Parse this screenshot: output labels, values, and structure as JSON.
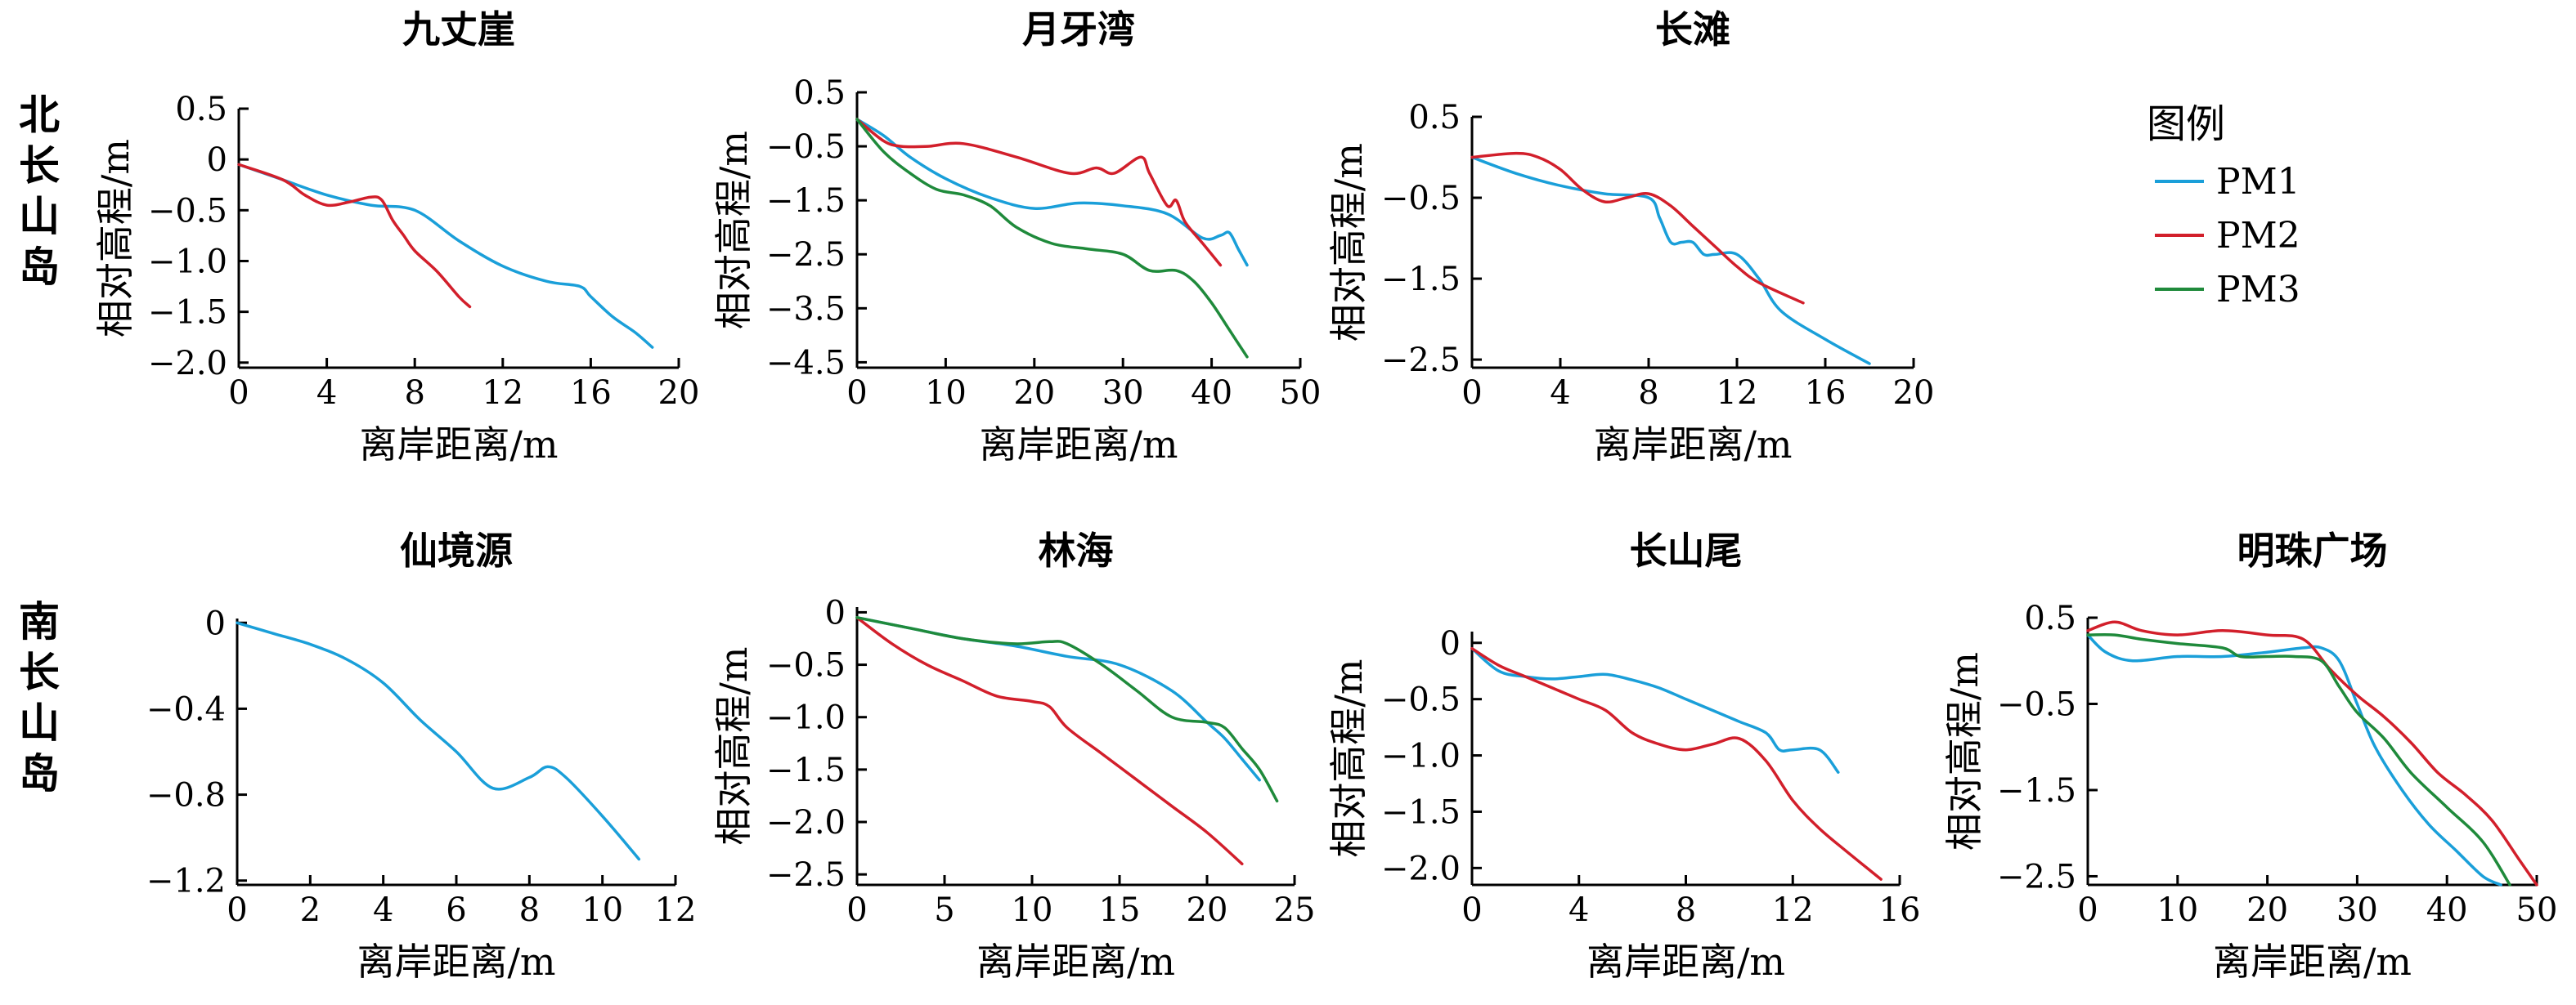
{
  "groups": [
    {
      "label": "北长山岛",
      "row": 0
    },
    {
      "label": "南长山岛",
      "row": 1
    }
  ],
  "legend": {
    "title": "图例",
    "items": [
      {
        "name": "PM1",
        "color": "#1a9fd9"
      },
      {
        "name": "PM2",
        "color": "#d21f2b"
      },
      {
        "name": "PM3",
        "color": "#1f8a3b"
      }
    ]
  },
  "chart_data": [
    {
      "type": "line",
      "title": "九丈崖",
      "xlabel": "离岸距离/m",
      "ylabel": "相对高程/m",
      "xlim": [
        0,
        20
      ],
      "ylim": [
        -2.05,
        0.5
      ],
      "xticks": [
        0,
        4,
        8,
        12,
        16,
        20
      ],
      "xtick_labels": [
        "0",
        "4",
        "8",
        "12",
        "16",
        "20"
      ],
      "yticks": [
        0.5,
        0,
        -0.5,
        -1.0,
        -1.5,
        -2.0
      ],
      "ytick_labels": [
        "0.5",
        "0",
        "−0.5",
        "−1.0",
        "−1.5",
        "−2.0"
      ],
      "series": [
        {
          "name": "PM1",
          "x": [
            0,
            2,
            4,
            6,
            8,
            10,
            12,
            14,
            15.5,
            16,
            17,
            18,
            18.8
          ],
          "y": [
            -0.05,
            -0.2,
            -0.35,
            -0.45,
            -0.5,
            -0.8,
            -1.05,
            -1.2,
            -1.25,
            -1.35,
            -1.55,
            -1.7,
            -1.85
          ]
        },
        {
          "name": "PM2",
          "x": [
            0,
            2,
            3,
            4,
            5,
            6,
            6.5,
            7,
            7.5,
            8,
            9,
            10,
            10.5
          ],
          "y": [
            -0.05,
            -0.2,
            -0.35,
            -0.45,
            -0.42,
            -0.37,
            -0.4,
            -0.6,
            -0.75,
            -0.9,
            -1.1,
            -1.35,
            -1.45
          ]
        }
      ]
    },
    {
      "type": "line",
      "title": "月牙湾",
      "xlabel": "离岸距离/m",
      "ylabel": "相对高程/m",
      "xlim": [
        0,
        50
      ],
      "ylim": [
        -4.6,
        0.5
      ],
      "xticks": [
        0,
        10,
        20,
        30,
        40,
        50
      ],
      "xtick_labels": [
        "0",
        "10",
        "20",
        "30",
        "40",
        "50"
      ],
      "yticks": [
        0.5,
        -0.5,
        -1.5,
        -2.5,
        -3.5,
        -4.5
      ],
      "ytick_labels": [
        "0.5",
        "−0.5",
        "−1.5",
        "−2.5",
        "−3.5",
        "−4.5"
      ],
      "series": [
        {
          "name": "PM1",
          "x": [
            0,
            3,
            6,
            10,
            15,
            20,
            25,
            30,
            35,
            39,
            41,
            42,
            43,
            44
          ],
          "y": [
            0,
            -0.3,
            -0.7,
            -1.1,
            -1.45,
            -1.65,
            -1.55,
            -1.6,
            -1.75,
            -2.2,
            -2.15,
            -2.1,
            -2.4,
            -2.7
          ]
        },
        {
          "name": "PM2",
          "x": [
            0,
            3,
            5,
            8,
            12,
            18,
            24,
            27,
            29,
            32,
            33,
            35,
            36,
            37,
            39,
            41
          ],
          "y": [
            0,
            -0.4,
            -0.5,
            -0.5,
            -0.45,
            -0.7,
            -1.0,
            -0.9,
            -1.0,
            -0.7,
            -1.0,
            -1.6,
            -1.5,
            -1.9,
            -2.3,
            -2.7
          ]
        },
        {
          "name": "PM3",
          "x": [
            0,
            3,
            6,
            9,
            12,
            15,
            18,
            22,
            26,
            30,
            33,
            36,
            38,
            40,
            42,
            44
          ],
          "y": [
            0,
            -0.6,
            -1.0,
            -1.3,
            -1.4,
            -1.6,
            -2.0,
            -2.3,
            -2.4,
            -2.5,
            -2.8,
            -2.8,
            -3.0,
            -3.4,
            -3.9,
            -4.4
          ]
        }
      ]
    },
    {
      "type": "line",
      "title": "长滩",
      "xlabel": "离岸距离/m",
      "ylabel": "相对高程/m",
      "xlim": [
        0,
        20
      ],
      "ylim": [
        -2.6,
        0.5
      ],
      "xticks": [
        0,
        4,
        8,
        12,
        16,
        20
      ],
      "xtick_labels": [
        "0",
        "4",
        "8",
        "12",
        "16",
        "20"
      ],
      "yticks": [
        0.5,
        -0.5,
        -1.5,
        -2.5
      ],
      "ytick_labels": [
        "0.5",
        "−0.5",
        "−1.5",
        "−2.5"
      ],
      "series": [
        {
          "name": "PM1",
          "x": [
            0,
            2,
            4,
            6,
            8,
            8.5,
            9,
            9.5,
            10,
            10.5,
            11,
            12,
            13,
            14,
            16,
            18
          ],
          "y": [
            0,
            -0.2,
            -0.35,
            -0.45,
            -0.5,
            -0.75,
            -1.05,
            -1.05,
            -1.05,
            -1.2,
            -1.2,
            -1.2,
            -1.5,
            -1.9,
            -2.25,
            -2.55
          ]
        },
        {
          "name": "PM2",
          "x": [
            0,
            2,
            3,
            4,
            5,
            6,
            7,
            8,
            9,
            10,
            11,
            12,
            13,
            15
          ],
          "y": [
            0,
            0.05,
            0.0,
            -0.15,
            -0.4,
            -0.55,
            -0.5,
            -0.45,
            -0.6,
            -0.85,
            -1.1,
            -1.35,
            -1.55,
            -1.8
          ]
        }
      ]
    },
    {
      "type": "line",
      "title": "仙境源",
      "xlabel": "离岸距离/m",
      "ylabel": "",
      "xlim": [
        0,
        12
      ],
      "ylim": [
        -1.22,
        0.02
      ],
      "xticks": [
        0,
        2,
        4,
        6,
        8,
        10,
        12
      ],
      "xtick_labels": [
        "0",
        "2",
        "4",
        "6",
        "8",
        "10",
        "12"
      ],
      "yticks": [
        0,
        -0.4,
        -0.8,
        -1.2
      ],
      "ytick_labels": [
        "0",
        "−0.4",
        "−0.8",
        "−1.2"
      ],
      "series": [
        {
          "name": "PM1",
          "x": [
            0,
            1,
            2,
            3,
            4,
            5,
            6,
            7,
            8,
            8.5,
            9,
            10,
            11
          ],
          "y": [
            0,
            -0.05,
            -0.1,
            -0.17,
            -0.28,
            -0.45,
            -0.6,
            -0.77,
            -0.72,
            -0.67,
            -0.72,
            -0.9,
            -1.1
          ]
        }
      ]
    },
    {
      "type": "line",
      "title": "林海",
      "xlabel": "离岸距离/m",
      "ylabel": "相对高程/m",
      "xlim": [
        0,
        25
      ],
      "ylim": [
        -2.6,
        0.05
      ],
      "xticks": [
        0,
        5,
        10,
        15,
        20,
        25
      ],
      "xtick_labels": [
        "0",
        "5",
        "10",
        "15",
        "20",
        "25"
      ],
      "yticks": [
        0,
        -0.5,
        -1.0,
        -1.5,
        -2.0,
        -2.5
      ],
      "ytick_labels": [
        "0",
        "−0.5",
        "−1.0",
        "−1.5",
        "−2.0",
        "−2.5"
      ],
      "series": [
        {
          "name": "PM1",
          "x": [
            0,
            3,
            6,
            9,
            12,
            15,
            18,
            20,
            21,
            22,
            23
          ],
          "y": [
            -0.05,
            -0.15,
            -0.25,
            -0.32,
            -0.42,
            -0.5,
            -0.75,
            -1.05,
            -1.2,
            -1.4,
            -1.6
          ]
        },
        {
          "name": "PM2",
          "x": [
            0,
            2,
            4,
            6,
            8,
            10,
            11,
            12,
            14,
            16,
            18,
            20,
            22
          ],
          "y": [
            -0.05,
            -0.3,
            -0.5,
            -0.65,
            -0.8,
            -0.85,
            -0.9,
            -1.1,
            -1.35,
            -1.6,
            -1.85,
            -2.1,
            -2.4
          ]
        },
        {
          "name": "PM3",
          "x": [
            0,
            3,
            6,
            9,
            11,
            12,
            14,
            16,
            18,
            20,
            21,
            22,
            23,
            24
          ],
          "y": [
            -0.05,
            -0.15,
            -0.25,
            -0.3,
            -0.28,
            -0.3,
            -0.5,
            -0.75,
            -1.0,
            -1.05,
            -1.1,
            -1.3,
            -1.5,
            -1.8
          ]
        }
      ]
    },
    {
      "type": "line",
      "title": "长山尾",
      "xlabel": "离岸距离/m",
      "ylabel": "相对高程/m",
      "xlim": [
        0,
        16
      ],
      "ylim": [
        -2.15,
        0.1
      ],
      "xticks": [
        0,
        4,
        8,
        12,
        16
      ],
      "xtick_labels": [
        "0",
        "4",
        "8",
        "12",
        "16"
      ],
      "yticks": [
        0,
        -0.5,
        -1.0,
        -1.5,
        -2.0
      ],
      "ytick_labels": [
        "0",
        "−0.5",
        "−1.0",
        "−1.5",
        "−2.0"
      ],
      "series": [
        {
          "name": "PM1",
          "x": [
            0,
            1,
            2,
            3,
            4,
            5,
            6,
            7,
            8,
            9,
            10,
            11,
            11.5,
            12,
            13,
            13.7
          ],
          "y": [
            -0.05,
            -0.25,
            -0.3,
            -0.32,
            -0.3,
            -0.28,
            -0.33,
            -0.4,
            -0.5,
            -0.6,
            -0.7,
            -0.8,
            -0.95,
            -0.95,
            -0.95,
            -1.15
          ]
        },
        {
          "name": "PM2",
          "x": [
            0,
            1,
            2,
            3,
            4,
            5,
            6,
            7,
            8,
            9,
            10,
            11,
            12,
            13,
            14,
            15.3
          ],
          "y": [
            -0.05,
            -0.2,
            -0.3,
            -0.4,
            -0.5,
            -0.6,
            -0.8,
            -0.9,
            -0.95,
            -0.9,
            -0.85,
            -1.05,
            -1.4,
            -1.65,
            -1.85,
            -2.1
          ]
        }
      ]
    },
    {
      "type": "line",
      "title": "明珠广场",
      "xlabel": "离岸距离/m",
      "ylabel": "相对高程/m",
      "xlim": [
        0,
        50
      ],
      "ylim": [
        -2.6,
        0.5
      ],
      "xticks": [
        0,
        10,
        20,
        30,
        40,
        50
      ],
      "xtick_labels": [
        "0",
        "10",
        "20",
        "30",
        "40",
        "50"
      ],
      "yticks": [
        0.5,
        -0.5,
        -1.5,
        -2.5
      ],
      "ytick_labels": [
        "0.5",
        "−0.5",
        "−1.5",
        "−2.5"
      ],
      "series": [
        {
          "name": "PM1",
          "x": [
            0,
            2,
            5,
            10,
            15,
            20,
            24,
            26,
            28,
            30,
            32,
            35,
            38,
            41,
            44,
            46
          ],
          "y": [
            0.3,
            0.1,
            0.0,
            0.05,
            0.05,
            0.1,
            0.15,
            0.15,
            0.0,
            -0.5,
            -1.0,
            -1.5,
            -1.9,
            -2.2,
            -2.5,
            -2.6
          ]
        },
        {
          "name": "PM2",
          "x": [
            0,
            3,
            6,
            10,
            15,
            20,
            24,
            27,
            30,
            33,
            36,
            39,
            42,
            45,
            48,
            50
          ],
          "y": [
            0.35,
            0.45,
            0.35,
            0.3,
            0.35,
            0.3,
            0.25,
            -0.1,
            -0.4,
            -0.65,
            -0.95,
            -1.3,
            -1.55,
            -1.85,
            -2.3,
            -2.6
          ]
        },
        {
          "name": "PM3",
          "x": [
            0,
            3,
            6,
            10,
            15,
            17,
            20,
            23,
            26,
            28,
            30,
            33,
            36,
            40,
            44,
            47
          ],
          "y": [
            0.3,
            0.3,
            0.25,
            0.2,
            0.15,
            0.05,
            0.05,
            0.05,
            0.0,
            -0.3,
            -0.6,
            -0.9,
            -1.3,
            -1.7,
            -2.1,
            -2.6
          ]
        }
      ]
    }
  ]
}
